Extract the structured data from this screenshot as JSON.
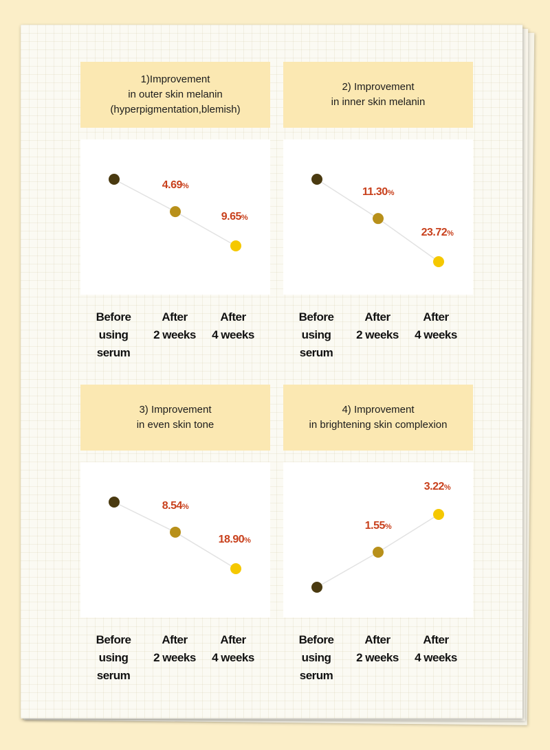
{
  "colors": {
    "background": "#fbeec8",
    "title_band": "#fbe8b2",
    "label_red": "#c8401c",
    "point_before": "#4a3a10",
    "point_2w": "#b8901a",
    "point_4w": "#f5c800",
    "line": "#e2e2e2"
  },
  "x_labels": [
    [
      "Before",
      "using",
      "serum"
    ],
    [
      "After",
      "2 weeks"
    ],
    [
      "After",
      "4 weeks"
    ]
  ],
  "chart_data": [
    {
      "type": "line",
      "title_lines": [
        "1)Improvement",
        "in outer skin melanin",
        "(hyperpigmentation,blemish)"
      ],
      "categories": [
        "Before using serum",
        "After 2 weeks",
        "After 4 weeks"
      ],
      "values": [
        0,
        4.69,
        9.65
      ],
      "data_labels": [
        "",
        "4.69",
        "9.65"
      ],
      "unit": "%",
      "direction": "down"
    },
    {
      "type": "line",
      "title_lines": [
        "2) Improvement",
        "in inner skin melanin"
      ],
      "categories": [
        "Before using serum",
        "After 2 weeks",
        "After 4 weeks"
      ],
      "values": [
        0,
        11.3,
        23.72
      ],
      "data_labels": [
        "",
        "11.30",
        "23.72"
      ],
      "unit": "%",
      "direction": "down"
    },
    {
      "type": "line",
      "title_lines": [
        "3) Improvement",
        "in even skin tone"
      ],
      "categories": [
        "Before using serum",
        "After 2 weeks",
        "After 4 weeks"
      ],
      "values": [
        0,
        8.54,
        18.9
      ],
      "data_labels": [
        "",
        "8.54",
        "18.90"
      ],
      "unit": "%",
      "direction": "down"
    },
    {
      "type": "line",
      "title_lines": [
        "4) Improvement",
        "in brightening skin complexion"
      ],
      "categories": [
        "Before using serum",
        "After 2 weeks",
        "After 4 weeks"
      ],
      "values": [
        0,
        1.55,
        3.22
      ],
      "data_labels": [
        "",
        "1.55",
        "3.22"
      ],
      "unit": "%",
      "direction": "up"
    }
  ]
}
